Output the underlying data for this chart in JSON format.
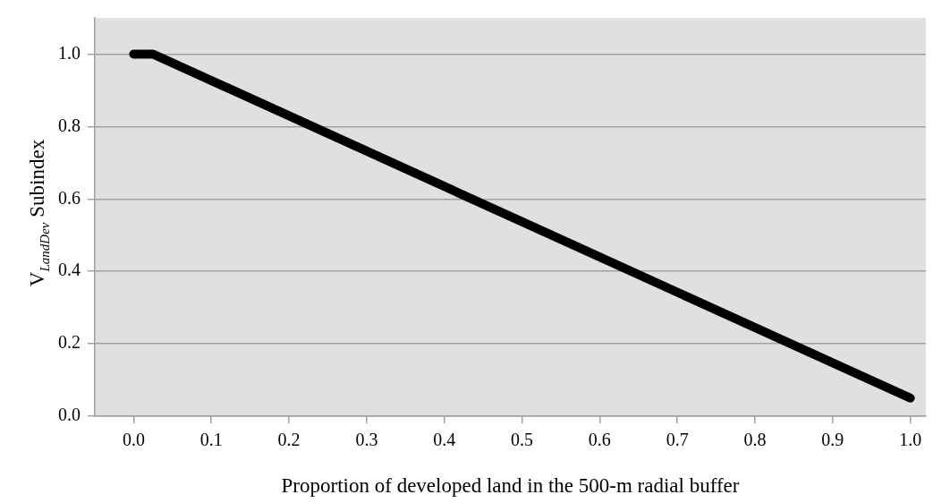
{
  "chart_data": {
    "type": "line",
    "xlabel": "Proportion of developed land in the 500-m radial buffer",
    "ylabel": "V$_{LandDev}$ Subindex",
    "x": [
      0,
      0.025,
      1.0
    ],
    "series": [
      {
        "color": "#000000",
        "values": [
          1.0,
          1.0,
          0.05
        ]
      }
    ],
    "xlim": [
      -0.05,
      1.02
    ],
    "xticks": [
      {
        "value": 0,
        "label": "0.0"
      },
      {
        "value": 0.1,
        "label": "0.1"
      },
      {
        "value": 0.2,
        "label": "0.2"
      },
      {
        "value": 0.3,
        "label": "0.3"
      },
      {
        "value": 0.4,
        "label": "0.4"
      },
      {
        "value": 0.5,
        "label": "0.5"
      },
      {
        "value": 0.6,
        "label": "0.6"
      },
      {
        "value": 0.7,
        "label": "0.7"
      },
      {
        "value": 0.8,
        "label": "0.8"
      },
      {
        "value": 0.9,
        "label": "0.9"
      },
      {
        "value": 1.0,
        "label": "1.0"
      }
    ],
    "ylim": [
      0,
      1.1
    ],
    "yticks": [
      {
        "value": 0,
        "label": "0.0"
      },
      {
        "value": 0.2,
        "label": "0.2"
      },
      {
        "value": 0.4,
        "label": "0.4"
      },
      {
        "value": 0.6,
        "label": "0.6"
      },
      {
        "value": 0.8,
        "label": "0.8"
      },
      {
        "value": 1.0,
        "label": "1.0"
      }
    ],
    "grid": "y",
    "legend": false,
    "marker": "none",
    "line_style": "solid"
  }
}
